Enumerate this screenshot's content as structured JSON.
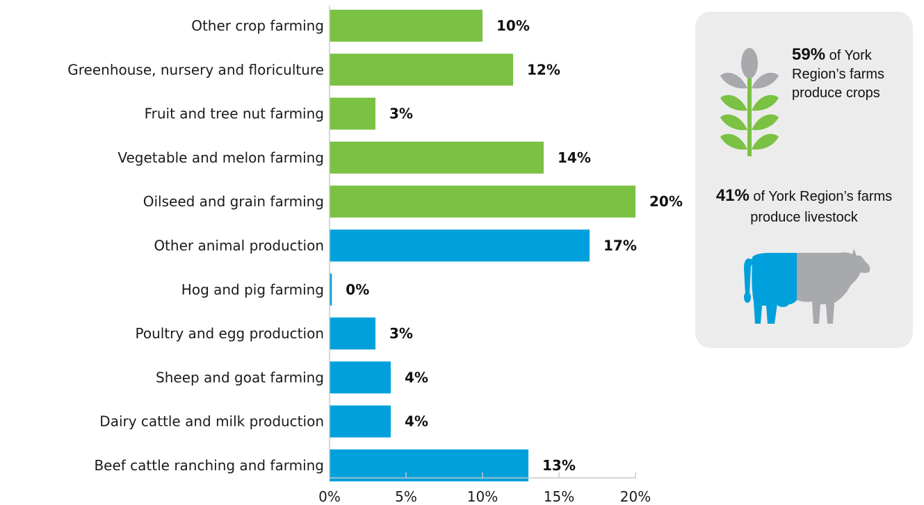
{
  "chart_data": {
    "type": "bar",
    "orientation": "horizontal",
    "categories": [
      "Other crop farming",
      "Greenhouse, nursery and floriculture",
      "Fruit and tree nut farming",
      "Vegetable and melon farming",
      "Oilseed and grain farming",
      "Other animal production",
      "Hog and pig farming",
      "Poultry and egg production",
      "Sheep and goat farming",
      "Dairy cattle and milk production",
      "Beef cattle ranching and farming"
    ],
    "values": [
      10,
      12,
      3,
      14,
      20,
      17,
      0.15,
      3,
      4,
      4,
      13
    ],
    "value_labels": [
      "10%",
      "12%",
      "3%",
      "14%",
      "20%",
      "17%",
      "0%",
      "3%",
      "4%",
      "4%",
      "13%"
    ],
    "groups": [
      "crops",
      "crops",
      "crops",
      "crops",
      "crops",
      "livestock",
      "livestock",
      "livestock",
      "livestock",
      "livestock",
      "livestock"
    ],
    "group_colors": {
      "crops": "#7bc143",
      "livestock": "#00a0dc"
    },
    "xlim": [
      0,
      20
    ],
    "xticks": [
      0,
      5,
      10,
      15,
      20
    ],
    "xtick_labels": [
      "0%",
      "5%",
      "10%",
      "15%",
      "20%"
    ],
    "title": "",
    "xlabel": "",
    "ylabel": "",
    "grid": false
  },
  "infobox": {
    "crops_pct": "59%",
    "crops_text": "of York Region’s farms produce crops",
    "livestock_pct": "41%",
    "livestock_text": "of York Region’s farms produce livestock",
    "crop_icon": "wheat-icon",
    "livestock_icon": "cow-icon",
    "colors": {
      "green": "#7bc143",
      "blue": "#00a0dc",
      "grey": "#a7a9ac",
      "background": "#ececec"
    }
  }
}
